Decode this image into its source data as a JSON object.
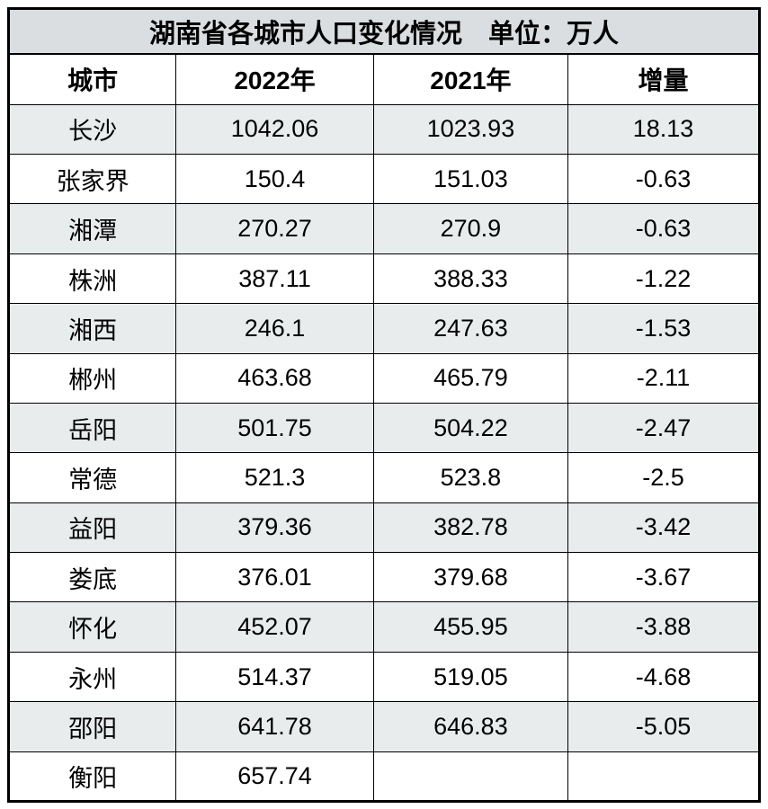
{
  "title": "湖南省各城市人口变化情况　单位：万人",
  "columns": [
    "城市",
    "2022年",
    "2021年",
    "增量"
  ],
  "rows": [
    {
      "city": "长沙",
      "y2022": "1042.06",
      "y2021": "1023.93",
      "delta": "18.13"
    },
    {
      "city": "张家界",
      "y2022": "150.4",
      "y2021": "151.03",
      "delta": "-0.63"
    },
    {
      "city": "湘潭",
      "y2022": "270.27",
      "y2021": "270.9",
      "delta": "-0.63"
    },
    {
      "city": "株洲",
      "y2022": "387.11",
      "y2021": "388.33",
      "delta": "-1.22"
    },
    {
      "city": "湘西",
      "y2022": "246.1",
      "y2021": "247.63",
      "delta": "-1.53"
    },
    {
      "city": "郴州",
      "y2022": "463.68",
      "y2021": "465.79",
      "delta": "-2.11"
    },
    {
      "city": "岳阳",
      "y2022": "501.75",
      "y2021": "504.22",
      "delta": "-2.47"
    },
    {
      "city": "常德",
      "y2022": "521.3",
      "y2021": "523.8",
      "delta": "-2.5"
    },
    {
      "city": "益阳",
      "y2022": "379.36",
      "y2021": "382.78",
      "delta": "-3.42"
    },
    {
      "city": "娄底",
      "y2022": "376.01",
      "y2021": "379.68",
      "delta": "-3.67"
    },
    {
      "city": "怀化",
      "y2022": "452.07",
      "y2021": "455.95",
      "delta": "-3.88"
    },
    {
      "city": "永州",
      "y2022": "514.37",
      "y2021": "519.05",
      "delta": "-4.68"
    },
    {
      "city": "邵阳",
      "y2022": "641.78",
      "y2021": "646.83",
      "delta": "-5.05"
    },
    {
      "city": "衡阳",
      "y2022": "657.74",
      "y2021": "",
      "delta": ""
    }
  ],
  "colors": {
    "title_bg": "#dbdee0",
    "shaded_row_bg": "#e9eced",
    "white_row_bg": "#ffffff",
    "border": "#000000",
    "text": "#000000"
  },
  "chart_data": {
    "type": "table",
    "title": "湖南省各城市人口变化情况",
    "unit": "万人",
    "columns": [
      "城市",
      "2022年",
      "2021年",
      "增量"
    ],
    "rows": [
      [
        "长沙",
        1042.06,
        1023.93,
        18.13
      ],
      [
        "张家界",
        150.4,
        151.03,
        -0.63
      ],
      [
        "湘潭",
        270.27,
        270.9,
        -0.63
      ],
      [
        "株洲",
        387.11,
        388.33,
        -1.22
      ],
      [
        "湘西",
        246.1,
        247.63,
        -1.53
      ],
      [
        "郴州",
        463.68,
        465.79,
        -2.11
      ],
      [
        "岳阳",
        501.75,
        504.22,
        -2.47
      ],
      [
        "常德",
        521.3,
        523.8,
        -2.5
      ],
      [
        "益阳",
        379.36,
        382.78,
        -3.42
      ],
      [
        "娄底",
        376.01,
        379.68,
        -3.67
      ],
      [
        "怀化",
        452.07,
        455.95,
        -3.88
      ],
      [
        "永州",
        514.37,
        519.05,
        -4.68
      ],
      [
        "邵阳",
        641.78,
        646.83,
        -5.05
      ],
      [
        "衡阳",
        657.74,
        null,
        null
      ]
    ],
    "layout_hints": {
      "striped": true,
      "first_data_row_shaded": true,
      "grid": true,
      "text_align": "center"
    }
  }
}
